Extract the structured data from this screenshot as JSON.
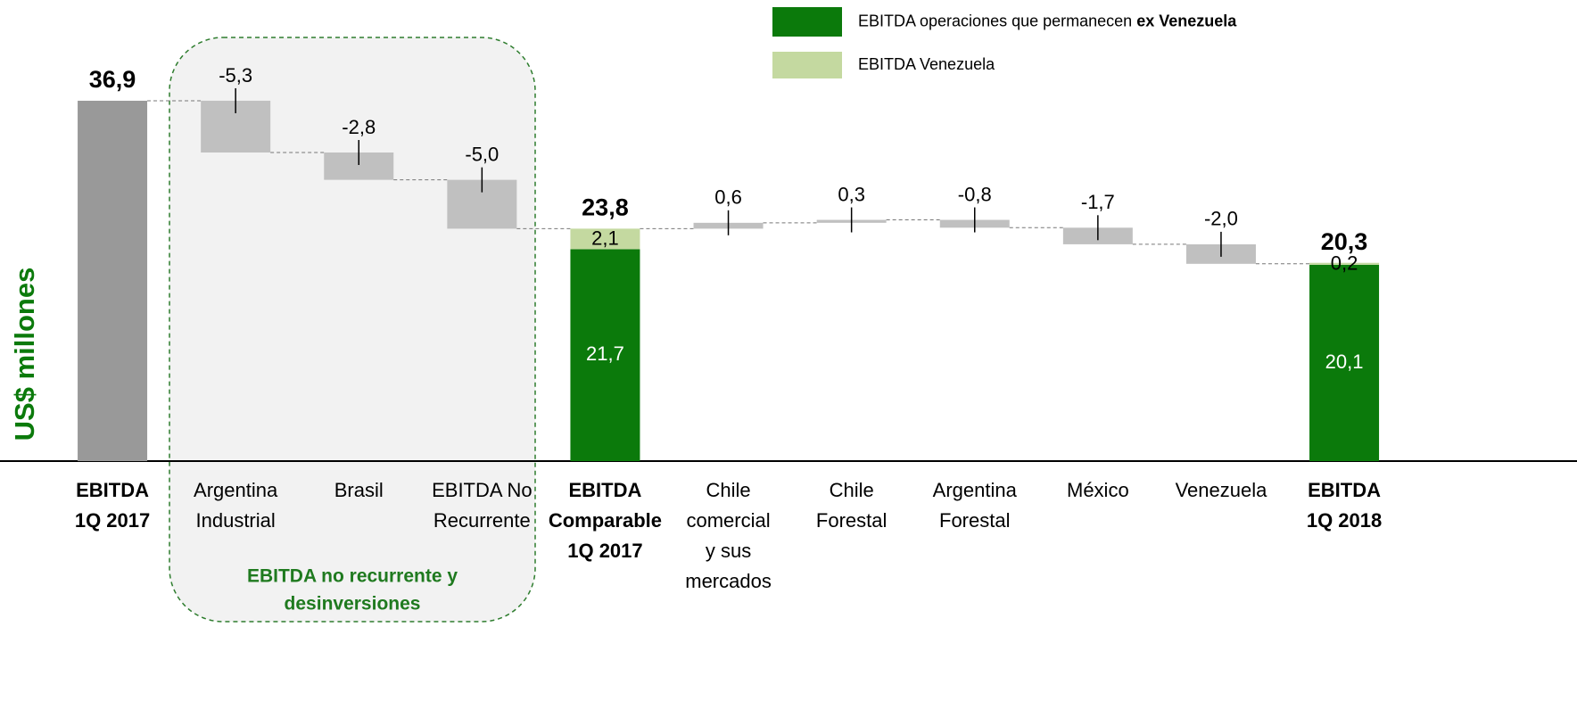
{
  "chart_data": {
    "type": "waterfall",
    "y_label": "US$ millones",
    "categories": [
      [
        "EBITDA",
        "1Q 2017"
      ],
      [
        "Argentina",
        "Industrial"
      ],
      [
        "Brasil"
      ],
      [
        "EBITDA No",
        "Recurrente"
      ],
      [
        "EBITDA",
        "Comparable",
        "1Q 2017"
      ],
      [
        "Chile",
        "comercial",
        "y sus",
        "mercados"
      ],
      [
        "Chile",
        "Forestal"
      ],
      [
        "Argentina",
        "Forestal"
      ],
      [
        "México"
      ],
      [
        "Venezuela"
      ],
      [
        "EBITDA",
        "1Q 2018"
      ]
    ],
    "bar_kind": [
      "total",
      "delta",
      "delta",
      "delta",
      "total",
      "delta",
      "delta",
      "delta",
      "delta",
      "delta",
      "total"
    ],
    "values": [
      36.9,
      -5.3,
      -2.8,
      -5.0,
      23.8,
      0.6,
      0.3,
      -0.8,
      -1.7,
      -2.0,
      20.3
    ],
    "value_labels": [
      "36,9",
      "-5,3",
      "-2,8",
      "-5,0",
      "23,8",
      "0,6",
      "0,3",
      "-0,8",
      "-1,7",
      "-2,0",
      "20,3"
    ],
    "total_color": "#999999",
    "delta_color": "#c0c0c0",
    "series": [
      {
        "name": "EBITDA operaciones que permanecen",
        "name_emphasis": "ex Venezuela",
        "color": "#0b7a0b",
        "values": [
          null,
          null,
          null,
          null,
          21.7,
          null,
          null,
          null,
          null,
          null,
          20.1
        ],
        "value_labels": [
          null,
          null,
          null,
          null,
          "21,7",
          null,
          null,
          null,
          null,
          null,
          "20,1"
        ]
      },
      {
        "name": "EBITDA Venezuela",
        "color": "#c4d9a0",
        "values": [
          null,
          null,
          null,
          null,
          2.1,
          null,
          null,
          null,
          null,
          null,
          0.2
        ],
        "value_labels": [
          null,
          null,
          null,
          null,
          "2,1",
          null,
          null,
          null,
          null,
          null,
          "0,2"
        ]
      }
    ],
    "group_label": [
      "EBITDA no recurrente y",
      "desinversiones"
    ],
    "ylim": [
      0,
      40
    ]
  }
}
